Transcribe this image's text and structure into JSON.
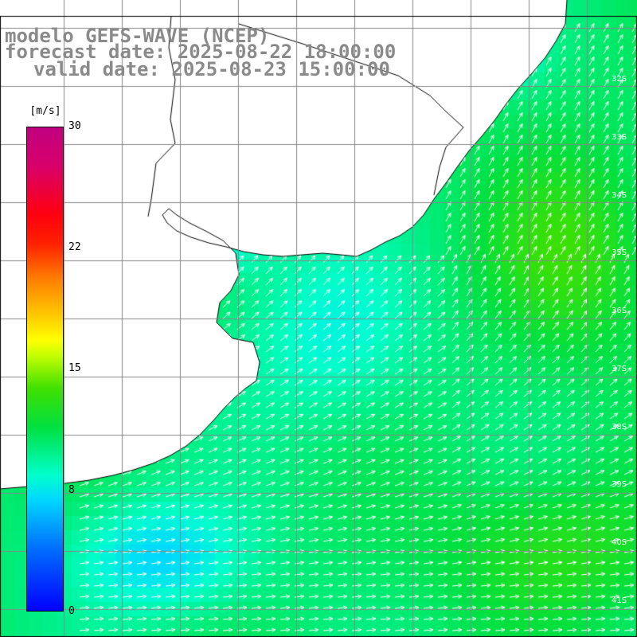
{
  "title": {
    "model": "modelo GEFS-WAVE (NCEP)",
    "forecast": "forecast date: 2025-08-22 18:00:00",
    "valid": "valid date: 2025-08-23 15:00:00"
  },
  "colorbar": {
    "unit": "[m/s]",
    "ticks": [
      "30",
      "22",
      "15",
      "8",
      "0"
    ],
    "range": [
      0,
      30
    ]
  },
  "lat_labels": [
    "32S",
    "33S",
    "34S",
    "35S",
    "36S",
    "37S",
    "38S",
    "39S",
    "40S",
    "41S"
  ],
  "colors": {
    "land": "#ffffff",
    "grid": "#888888",
    "coast": "#000000",
    "arrows": "#ffffff"
  },
  "wind_field": {
    "units": "m/s",
    "direction": "mostly westerly to south-westerly flow, turning north-eastward along the coast",
    "speed_min": 6,
    "speed_max": 14
  }
}
